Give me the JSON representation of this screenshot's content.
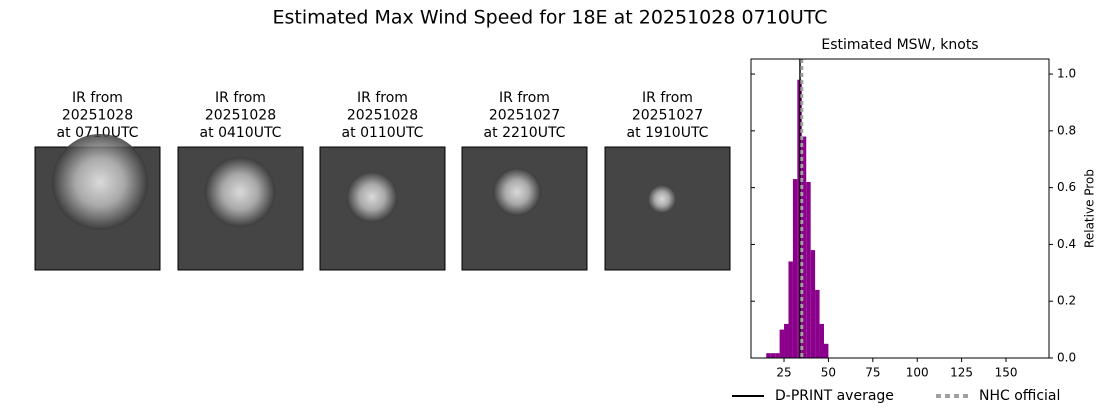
{
  "title": "Estimated Max Wind Speed for 18E at 20251028 0710UTC",
  "panels": [
    {
      "lines": [
        "IR from",
        "20251028",
        "at 0710UTC"
      ]
    },
    {
      "lines": [
        "IR from",
        "20251028",
        "at 0410UTC"
      ]
    },
    {
      "lines": [
        "IR from",
        "20251028",
        "at 0110UTC"
      ]
    },
    {
      "lines": [
        "IR from",
        "20251027",
        "at 2210UTC"
      ]
    },
    {
      "lines": [
        "IR from",
        "20251027",
        "at 1910UTC"
      ]
    }
  ],
  "chart_data": {
    "type": "histogram",
    "title": "Estimated MSW, knots",
    "ylabel": "Relative Prob",
    "bins": [
      15,
      17.5,
      20,
      22.5,
      25,
      27.5,
      30,
      32.5,
      35,
      37.5,
      40,
      42.5,
      45,
      47.5,
      50
    ],
    "values": [
      0.017,
      0.017,
      0.017,
      0.1,
      0.12,
      0.34,
      0.63,
      0.98,
      0.78,
      0.62,
      0.38,
      0.24,
      0.12,
      0.05
    ],
    "color": "#8b008b",
    "xlim": [
      6.4,
      174.2
    ],
    "ylim": [
      0,
      1.053
    ],
    "xticks": [
      25,
      50,
      75,
      100,
      125,
      150
    ],
    "yticks": [
      {
        "value": 0,
        "label": "0.0"
      },
      {
        "value": 0.2,
        "label": "0.2"
      },
      {
        "value": 0.4,
        "label": "0.4"
      },
      {
        "value": 0.6,
        "label": "0.6"
      },
      {
        "value": 0.8,
        "label": "0.8"
      },
      {
        "value": 1,
        "label": "1.0"
      }
    ],
    "vlines": [
      {
        "name": "D-PRINT average",
        "color": "#000000",
        "value": 34,
        "dashed": false
      },
      {
        "name": "NHC official",
        "color": "#a0a0a0",
        "value": 35,
        "dashed": true
      }
    ],
    "legend": "bottom"
  }
}
